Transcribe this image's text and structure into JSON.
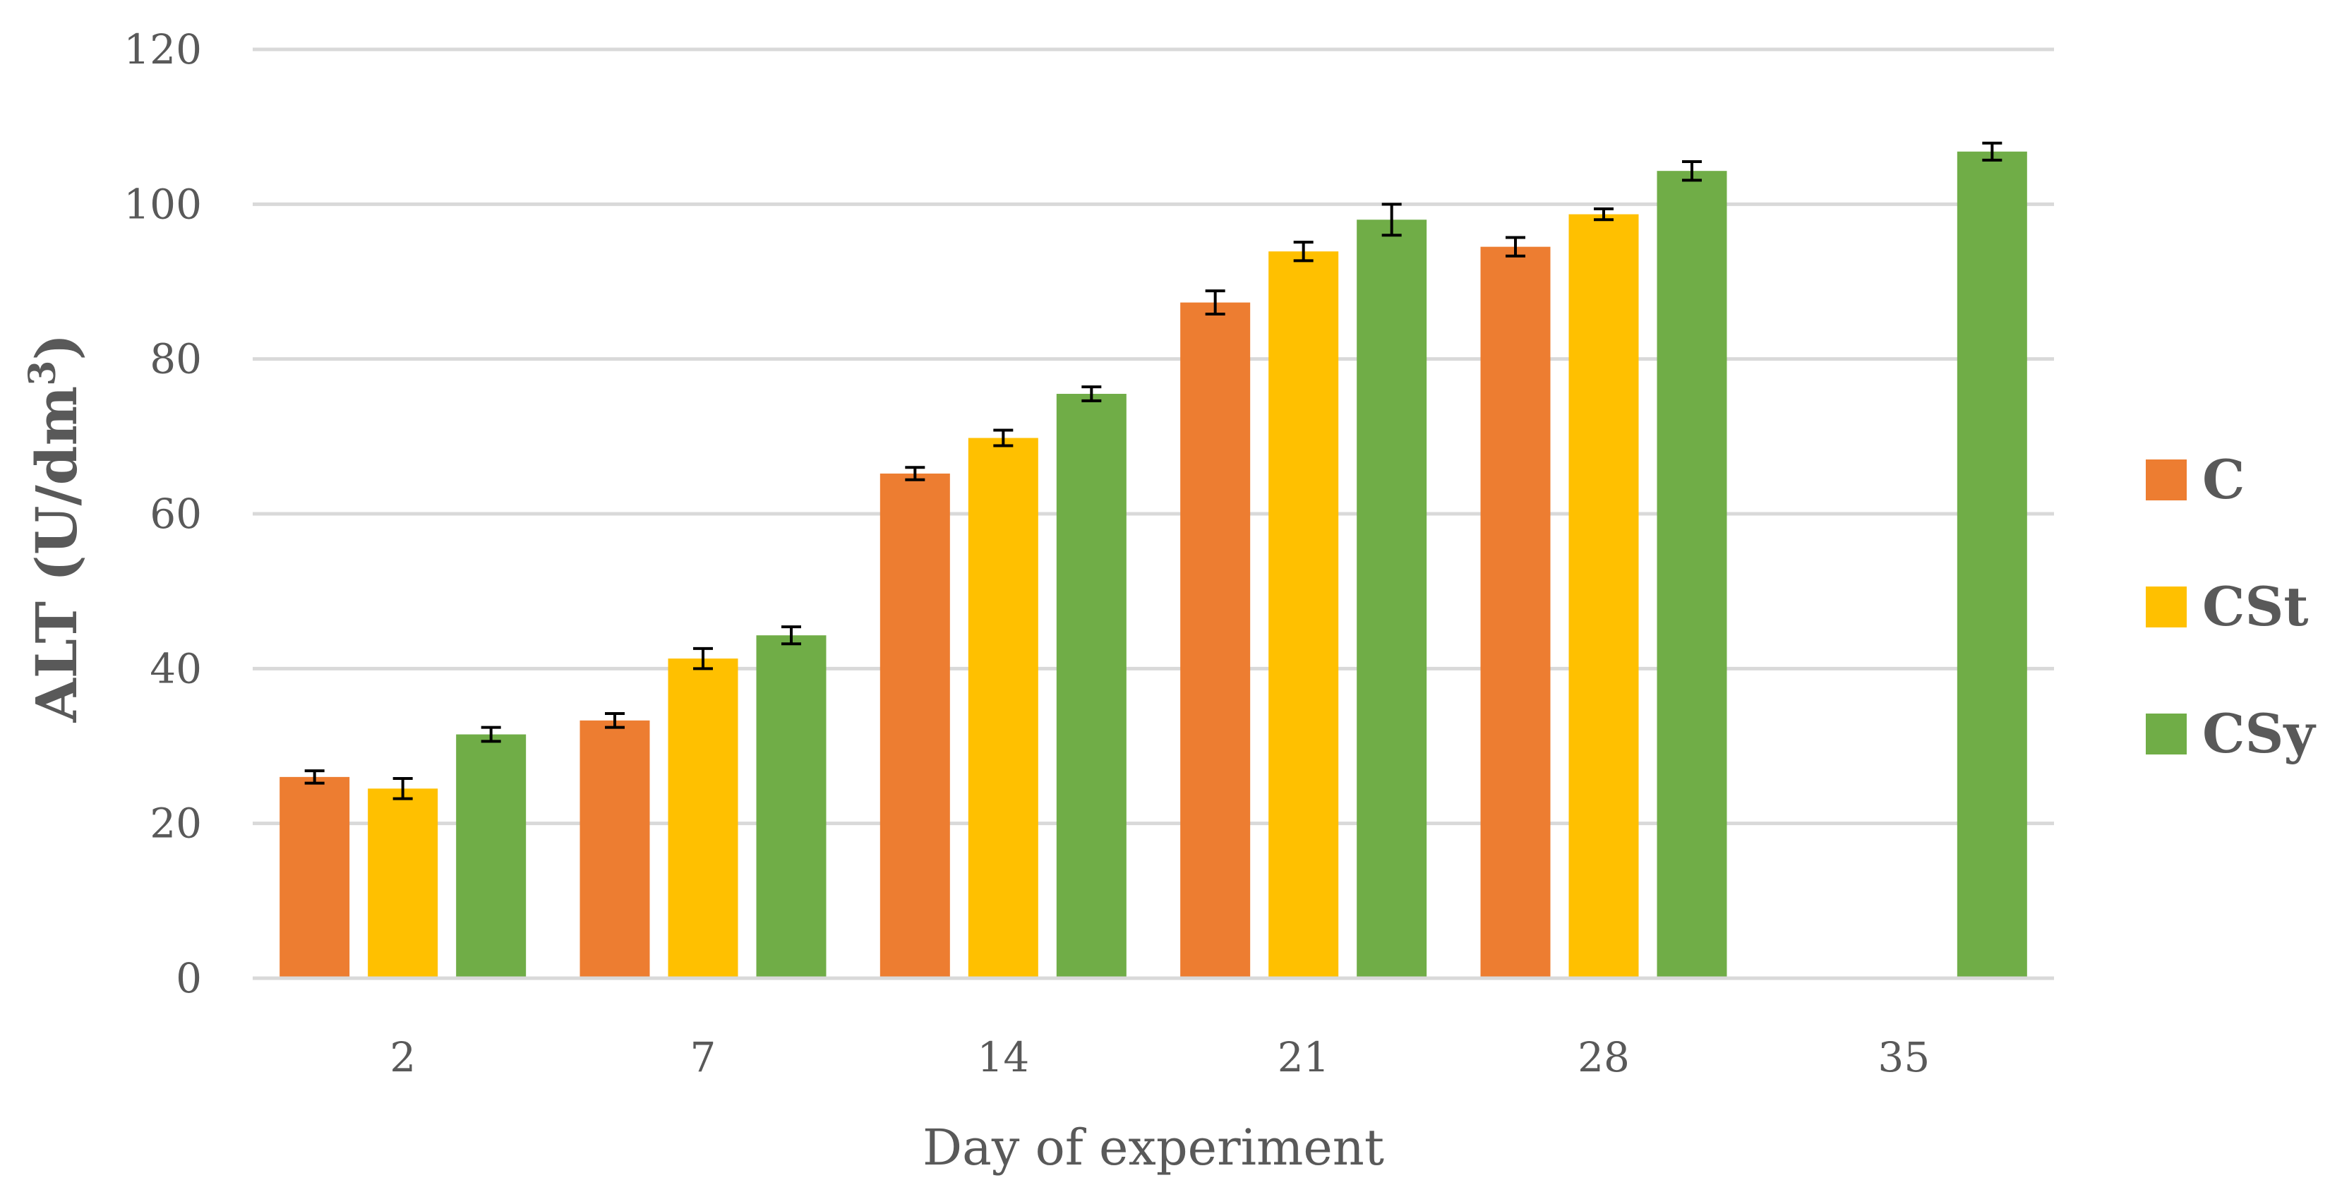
{
  "chart_data": {
    "type": "bar",
    "title": "",
    "xlabel": "Day of experiment",
    "ylabel": "ALT (U/dm",
    "ylabel_sup": "3",
    "ylabel_close": ")",
    "categories": [
      "2",
      "7",
      "14",
      "21",
      "28",
      "35"
    ],
    "ylim": [
      0,
      120
    ],
    "yticks": [
      0,
      20,
      40,
      60,
      80,
      100,
      120
    ],
    "grid": true,
    "legend_position": "right",
    "series": [
      {
        "name": "C",
        "color": "#ED7D31",
        "values": [
          26.0,
          33.3,
          65.2,
          87.3,
          94.5,
          null
        ],
        "errors": [
          0.8,
          0.9,
          0.8,
          1.5,
          1.2,
          null
        ]
      },
      {
        "name": "CSt",
        "color": "#FFC000",
        "values": [
          24.5,
          41.3,
          69.8,
          93.9,
          98.7,
          null
        ],
        "errors": [
          1.3,
          1.3,
          1.0,
          1.2,
          0.7,
          null
        ]
      },
      {
        "name": "CSy",
        "color": "#70AD47",
        "values": [
          31.5,
          44.3,
          75.5,
          98.0,
          104.3,
          106.8
        ],
        "errors": [
          0.9,
          1.1,
          0.9,
          2.0,
          1.2,
          1.1
        ]
      }
    ]
  }
}
